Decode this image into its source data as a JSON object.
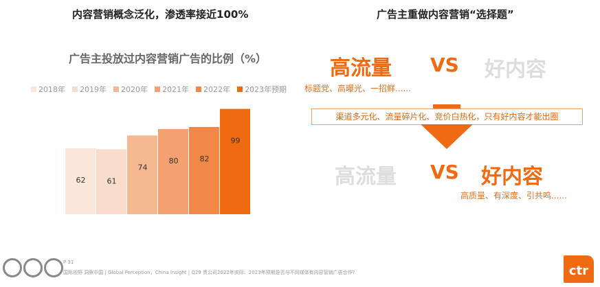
{
  "left_title": "内容营销概念泛化，渗透率接近100%",
  "right_title": "广告主重做内容营销“选择题”",
  "chart_data": {
    "type": "bar",
    "title": "广告主投放过内容营销广告的比例（%）",
    "categories": [
      "2018年",
      "2019年",
      "2020年",
      "2021年",
      "2022年",
      "2023年预期"
    ],
    "values": [
      62,
      61,
      74,
      80,
      82,
      99
    ],
    "colors": [
      "#fbe6dc",
      "#f9dccb",
      "#f6b890",
      "#f4a070",
      "#f28848",
      "#ef6a10"
    ],
    "legend": "top",
    "ylim": [
      0,
      100
    ]
  },
  "top_compare": {
    "left": "高流量",
    "vs": "VS",
    "right": "好内容",
    "sub": "标题党、高曝光、一招鲜......"
  },
  "middle_box": "渠道多元化、流量碎片化、竞价白热化，只有好内容才能出圈",
  "bottom_compare": {
    "left": "高流量",
    "vs": "VS",
    "right": "好内容",
    "sub": "高质量、有深度、引共鸣......"
  },
  "footer": {
    "page": "P 31",
    "text": "国际视野 洞察中国 | Global Perception，China Insight | Q29 贵公司2022年实际、2023年预期是否与不同媒体有内容营销广告合作?",
    "logo": "ctr"
  }
}
